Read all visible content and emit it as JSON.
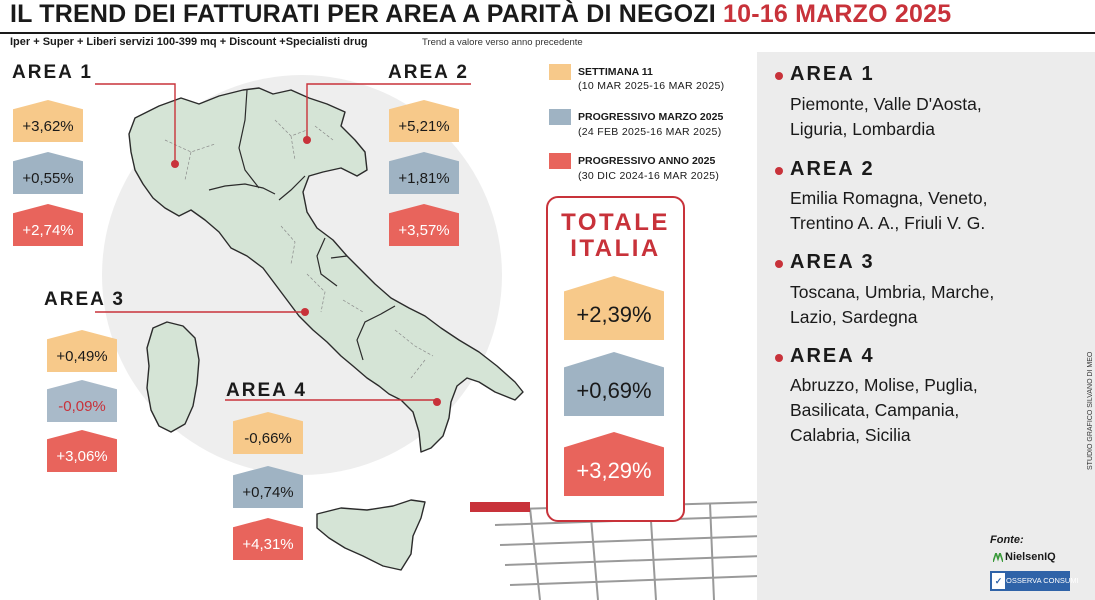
{
  "header": {
    "title_main": "IL TREND DEI FATTURATI PER AREA A PARITÀ DI NEGOZI",
    "title_dates": "10-16 MARZO 2025",
    "subtitle": "Iper + Super + Liberi servizi 100-399 mq + Discount +Specialisti drug",
    "note": "Trend a valore verso anno precedente"
  },
  "map_areas": [
    {
      "label": "AREA 1",
      "week": "+3,62%",
      "month": "+0,55%",
      "year": "+2,74%"
    },
    {
      "label": "AREA 2",
      "week": "+5,21%",
      "month": "+1,81%",
      "year": "+3,57%"
    },
    {
      "label": "AREA 3",
      "week": "+0,49%",
      "month": "-0,09%",
      "year": "+3,06%"
    },
    {
      "label": "AREA 4",
      "week": "-0,66%",
      "month": "+0,74%",
      "year": "+4,31%"
    }
  ],
  "legend": [
    {
      "label": "SETTIMANA 11",
      "dates": "(10 MAR 2025-16 MAR 2025)",
      "color": "#f7c98a"
    },
    {
      "label": "PROGRESSIVO MARZO 2025",
      "dates": "(24 FEB 2025-16 MAR 2025)",
      "color": "#9fb3c3"
    },
    {
      "label": "PROGRESSIVO ANNO 2025",
      "dates": "(30 DIC 2024-16 MAR 2025)",
      "color": "#e8645c"
    }
  ],
  "totale": {
    "line1": "TOTALE",
    "line2": "ITALIA",
    "week": "+2,39%",
    "month": "+0,69%",
    "year": "+3,29%"
  },
  "regions": [
    {
      "title": "AREA 1",
      "lines": [
        "Piemonte, Valle D'Aosta,",
        "Liguria, Lombardia"
      ]
    },
    {
      "title": "AREA 2",
      "lines": [
        "Emilia Romagna, Veneto,",
        "Trentino A. A., Friuli V. G."
      ]
    },
    {
      "title": "AREA 3",
      "lines": [
        "Toscana, Umbria, Marche,",
        "Lazio, Sardegna"
      ]
    },
    {
      "title": "AREA 4",
      "lines": [
        "Abruzzo, Molise, Puglia,",
        "Basilicata, Campania,",
        "Calabria, Sicilia"
      ]
    }
  ],
  "sources": {
    "label": "Fonte:",
    "nielsen": "NielsenIQ",
    "osserva": "OSSERVA CONSUMI"
  },
  "credit": "STUDIO GRAFICO SILVANO DI MEO",
  "colors": {
    "accent": "#c8323a",
    "map_fill": "#d5e4d6",
    "map_stroke": "#2b2b2b"
  }
}
